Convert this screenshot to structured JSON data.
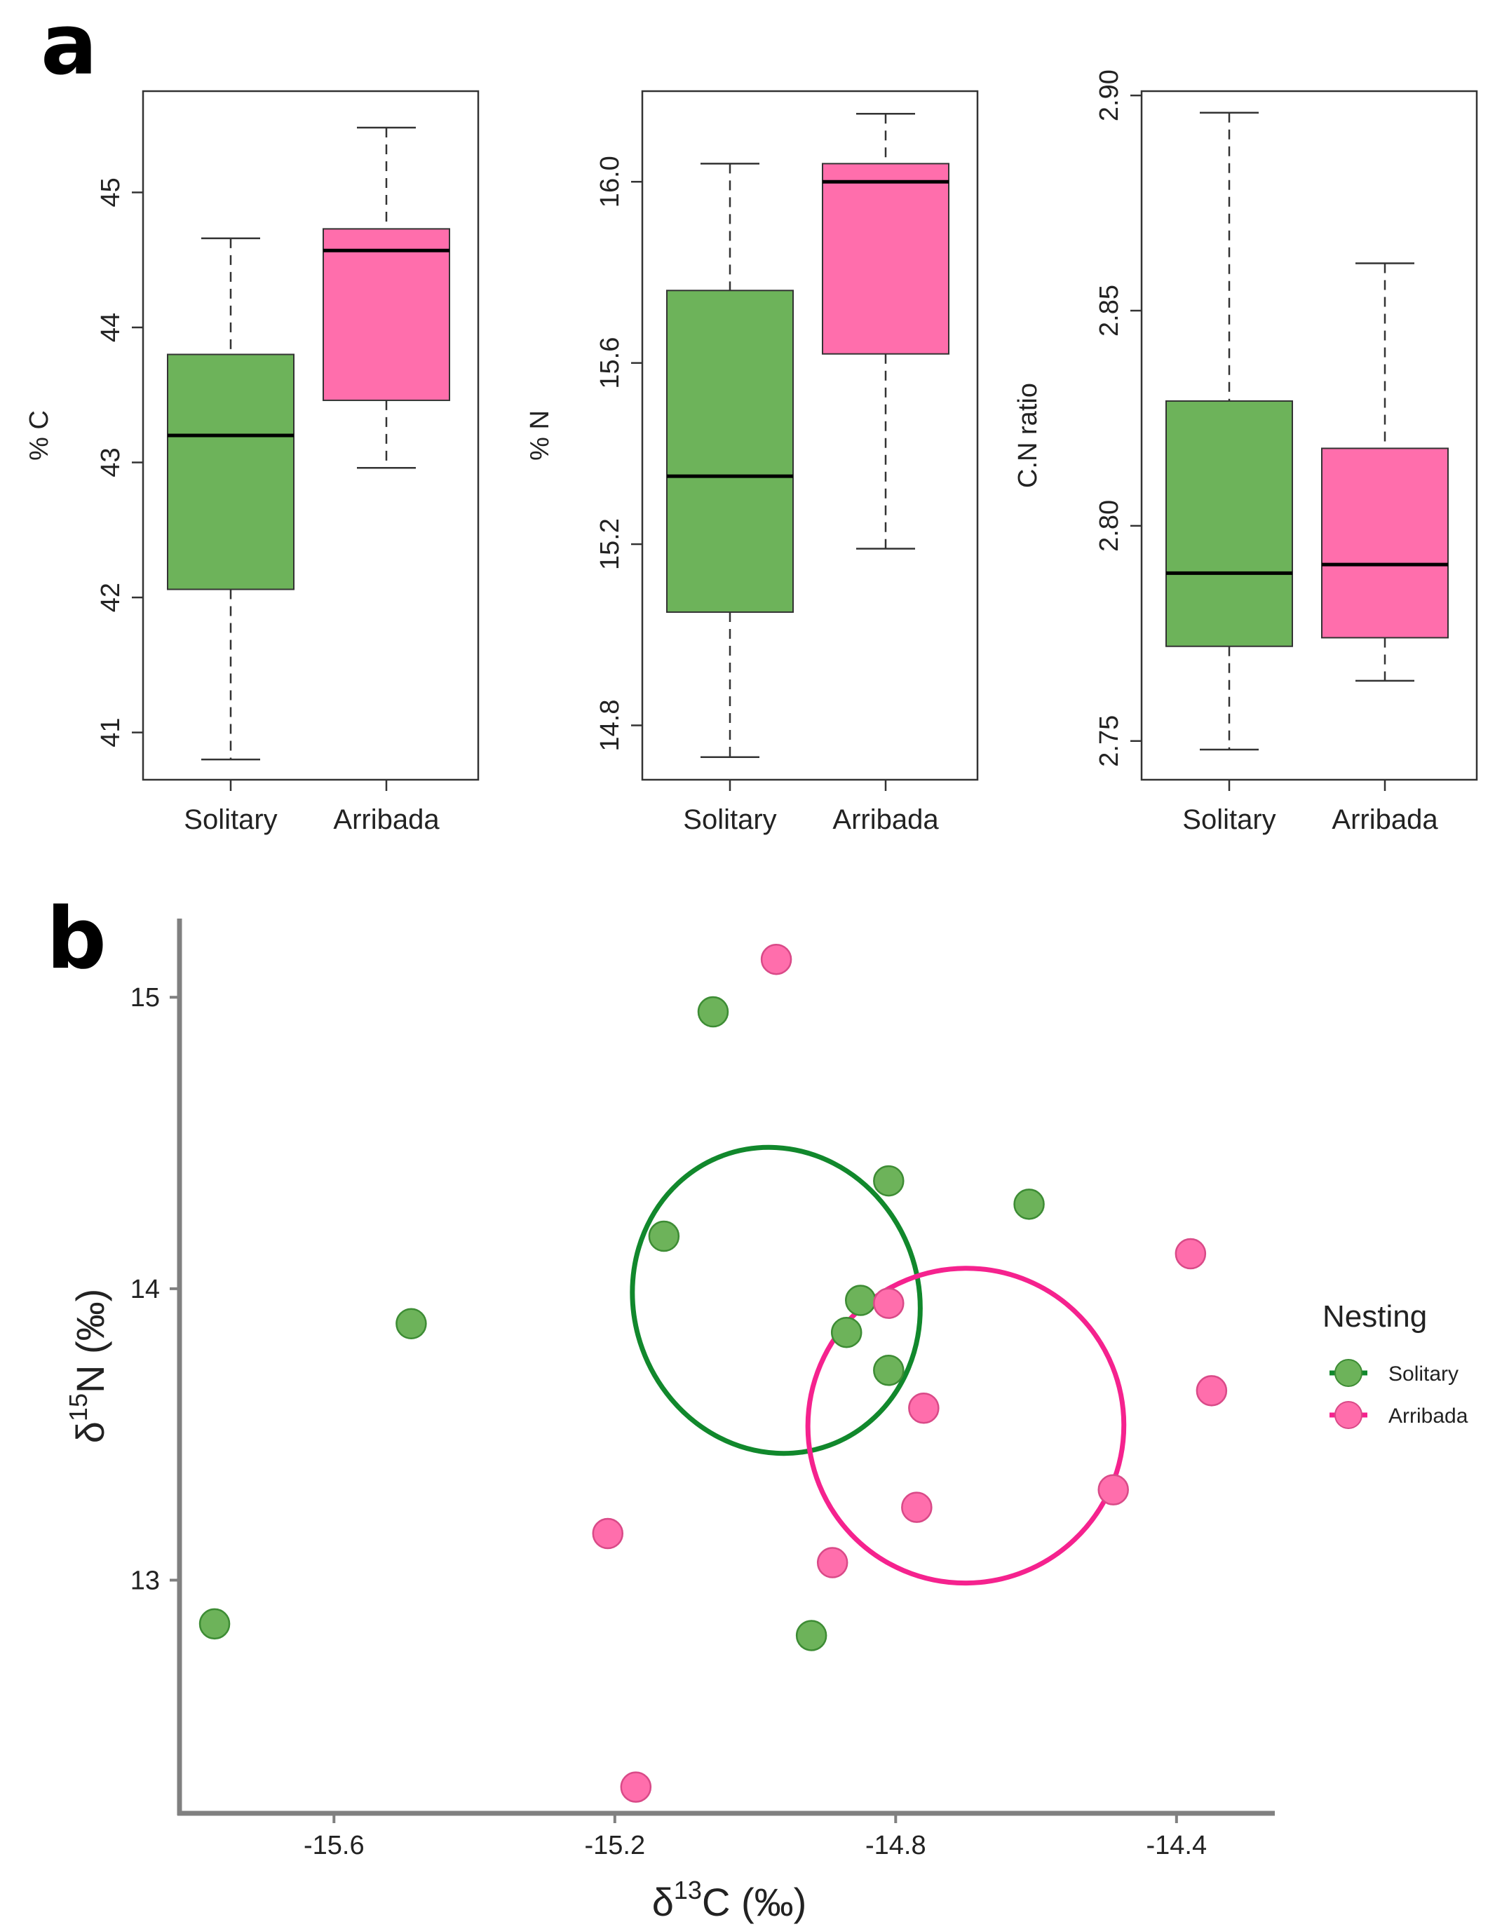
{
  "panels": {
    "a": "a",
    "b": "b"
  },
  "colors": {
    "solitary_fill": "#6db35a",
    "solitary_stroke": "#3d8c34",
    "arribada_fill": "#ff6eac",
    "arribada_stroke": "#d94a88",
    "solitary_ellipse": "#11882c",
    "arribada_ellipse": "#f5228e",
    "axis": "#808080"
  },
  "chart_data": [
    {
      "type": "box",
      "ylabel": "% C",
      "categories": [
        "Solitary",
        "Arribada"
      ],
      "ylim": [
        40.65,
        45.75
      ],
      "yticks": [
        41,
        42,
        43,
        44,
        45
      ],
      "ytick_labels": [
        "41",
        "42",
        "43",
        "44",
        "45"
      ],
      "series": [
        {
          "name": "Solitary",
          "whisker_low": 40.8,
          "q1": 42.06,
          "median": 43.2,
          "q3": 43.8,
          "whisker_high": 44.66
        },
        {
          "name": "Arribada",
          "whisker_low": 42.96,
          "q1": 43.46,
          "median": 44.57,
          "q3": 44.73,
          "whisker_high": 45.48
        }
      ]
    },
    {
      "type": "box",
      "ylabel": "% N",
      "categories": [
        "Solitary",
        "Arribada"
      ],
      "ylim": [
        14.68,
        16.2
      ],
      "yticks": [
        14.8,
        15.2,
        15.6,
        16.0
      ],
      "ytick_labels": [
        "14.8",
        "15.2",
        "15.6",
        "16.0"
      ],
      "series": [
        {
          "name": "Solitary",
          "whisker_low": 14.73,
          "q1": 15.05,
          "median": 15.35,
          "q3": 15.76,
          "whisker_high": 16.04
        },
        {
          "name": "Arribada",
          "whisker_low": 15.19,
          "q1": 15.62,
          "median": 16.0,
          "q3": 16.04,
          "whisker_high": 16.15
        }
      ]
    },
    {
      "type": "box",
      "ylabel": "C.N ratio",
      "categories": [
        "Solitary",
        "Arribada"
      ],
      "ylim": [
        2.741,
        2.901
      ],
      "yticks": [
        2.75,
        2.8,
        2.85,
        2.9
      ],
      "ytick_labels": [
        "2.75",
        "2.80",
        "2.85",
        "2.90"
      ],
      "series": [
        {
          "name": "Solitary",
          "whisker_low": 2.748,
          "q1": 2.772,
          "median": 2.789,
          "q3": 2.829,
          "whisker_high": 2.896
        },
        {
          "name": "Arribada",
          "whisker_low": 2.764,
          "q1": 2.774,
          "median": 2.791,
          "q3": 2.818,
          "whisker_high": 2.861
        }
      ]
    },
    {
      "type": "scatter",
      "xlabel": {
        "prefix": "δ",
        "sup": "13",
        "rest": "C (‰)"
      },
      "ylabel": {
        "prefix": "δ",
        "sup": "15",
        "rest": "N (‰)"
      },
      "xlim": [
        -15.82,
        -14.26
      ],
      "ylim": [
        12.2,
        15.27
      ],
      "xticks": [
        -15.6,
        -15.2,
        -14.8,
        -14.4
      ],
      "xtick_labels": [
        "-15.6",
        "-15.2",
        "-14.8",
        "-14.4"
      ],
      "yticks": [
        13,
        14,
        15
      ],
      "ytick_labels": [
        "13",
        "14",
        "15"
      ],
      "legend": {
        "title": "Nesting",
        "position": "right"
      },
      "series": [
        {
          "name": "Solitary",
          "points": [
            [
              -15.06,
              14.95
            ],
            [
              -14.81,
              14.37
            ],
            [
              -14.61,
              14.29
            ],
            [
              -15.13,
              14.18
            ],
            [
              -15.49,
              13.88
            ],
            [
              -14.85,
              13.96
            ],
            [
              -14.87,
              13.85
            ],
            [
              -14.81,
              13.72
            ],
            [
              -15.77,
              12.85
            ],
            [
              -14.92,
              12.81
            ]
          ],
          "ellipse": {
            "center": [
              -14.97,
              13.96
            ],
            "x_extent": [
              -15.17,
              -14.76
            ],
            "y_extent": [
              13.45,
              14.5
            ]
          }
        },
        {
          "name": "Arribada",
          "points": [
            [
              -14.97,
              15.13
            ],
            [
              -14.38,
              14.12
            ],
            [
              -14.35,
              13.65
            ],
            [
              -14.81,
              13.95
            ],
            [
              -14.76,
              13.59
            ],
            [
              -14.49,
              13.31
            ],
            [
              -14.77,
              13.25
            ],
            [
              -15.21,
              13.16
            ],
            [
              -14.89,
              13.06
            ],
            [
              -15.17,
              12.29
            ]
          ],
          "ellipse": {
            "center": [
              -14.7,
              13.53
            ],
            "x_extent": [
              -14.93,
              -14.48
            ],
            "y_extent": [
              12.98,
              14.06
            ]
          }
        }
      ]
    }
  ]
}
